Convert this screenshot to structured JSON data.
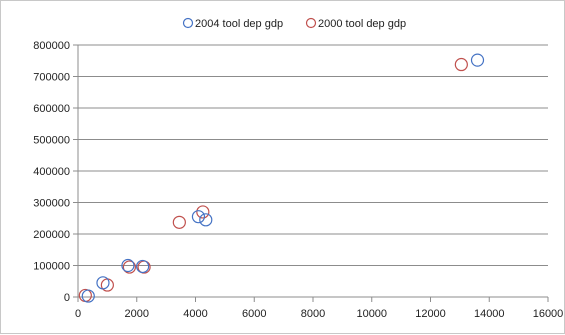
{
  "chart_data": {
    "type": "scatter",
    "title": "",
    "xlabel": "",
    "ylabel": "",
    "xlim": [
      0,
      16000
    ],
    "ylim": [
      0,
      800000
    ],
    "x_ticks": [
      "0",
      "2000",
      "4000",
      "6000",
      "8000",
      "10000",
      "12000",
      "14000",
      "16000"
    ],
    "y_ticks": [
      "0",
      "100000",
      "200000",
      "300000",
      "400000",
      "500000",
      "600000",
      "700000",
      "800000"
    ],
    "grid": "horizontal",
    "legend_position": "top",
    "series": [
      {
        "name": "2004 tool dep gdp",
        "color": "#4472c4",
        "marker": "open-circle",
        "points": [
          {
            "x": 350,
            "y": 3000
          },
          {
            "x": 850,
            "y": 45000
          },
          {
            "x": 1700,
            "y": 100000
          },
          {
            "x": 2200,
            "y": 97000
          },
          {
            "x": 4100,
            "y": 255000
          },
          {
            "x": 4350,
            "y": 245000
          },
          {
            "x": 13600,
            "y": 752000
          }
        ]
      },
      {
        "name": "2000 tool dep gdp",
        "color": "#c0504d",
        "marker": "open-circle",
        "points": [
          {
            "x": 250,
            "y": 5000
          },
          {
            "x": 1000,
            "y": 38000
          },
          {
            "x": 1750,
            "y": 95000
          },
          {
            "x": 2250,
            "y": 95000
          },
          {
            "x": 3450,
            "y": 237000
          },
          {
            "x": 4250,
            "y": 270000
          },
          {
            "x": 13050,
            "y": 738000
          }
        ]
      }
    ]
  }
}
